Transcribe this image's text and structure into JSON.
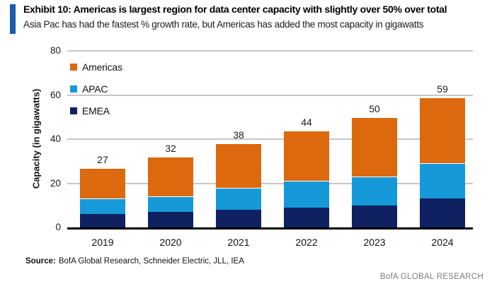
{
  "header": {
    "exhibit_title": "Exhibit 10: Americas is largest region for data center capacity with slightly over 50% over total",
    "subtitle": "Asia Pac has had the fastest % growth rate, but Americas has added the most capacity in gigawatts"
  },
  "chart_data": {
    "type": "bar",
    "stacked": true,
    "categories": [
      "2019",
      "2020",
      "2021",
      "2022",
      "2023",
      "2024"
    ],
    "series": [
      {
        "name": "EMEA",
        "color": "#0F2161",
        "values": [
          6,
          7,
          8,
          9,
          10,
          13
        ]
      },
      {
        "name": "APAC",
        "color": "#1699D8",
        "values": [
          7,
          7,
          10,
          12,
          13,
          16
        ]
      },
      {
        "name": "Americas",
        "color": "#DC690E",
        "values": [
          14,
          18,
          20,
          23,
          27,
          30
        ]
      }
    ],
    "totals": [
      27,
      32,
      38,
      44,
      50,
      59
    ],
    "xlabel": "",
    "ylabel": "Capacity (in gigawatts)",
    "ylim": [
      0,
      80
    ],
    "yticks": [
      0,
      20,
      40,
      60,
      80
    ],
    "grid": true,
    "legend_position": "top-left",
    "legend_order_top_to_bottom": [
      "Americas",
      "APAC",
      "EMEA"
    ]
  },
  "footer": {
    "source_label": "Source:",
    "source_text": "BofA Global Research, Schneider Electric, JLL, IEA",
    "brand": "BofA GLOBAL RESEARCH"
  },
  "colors": {
    "accent_bar": "#1B5CAD",
    "gridline": "#C7C7C7",
    "axis": "#000000",
    "brand_text": "#7C7C7C"
  }
}
